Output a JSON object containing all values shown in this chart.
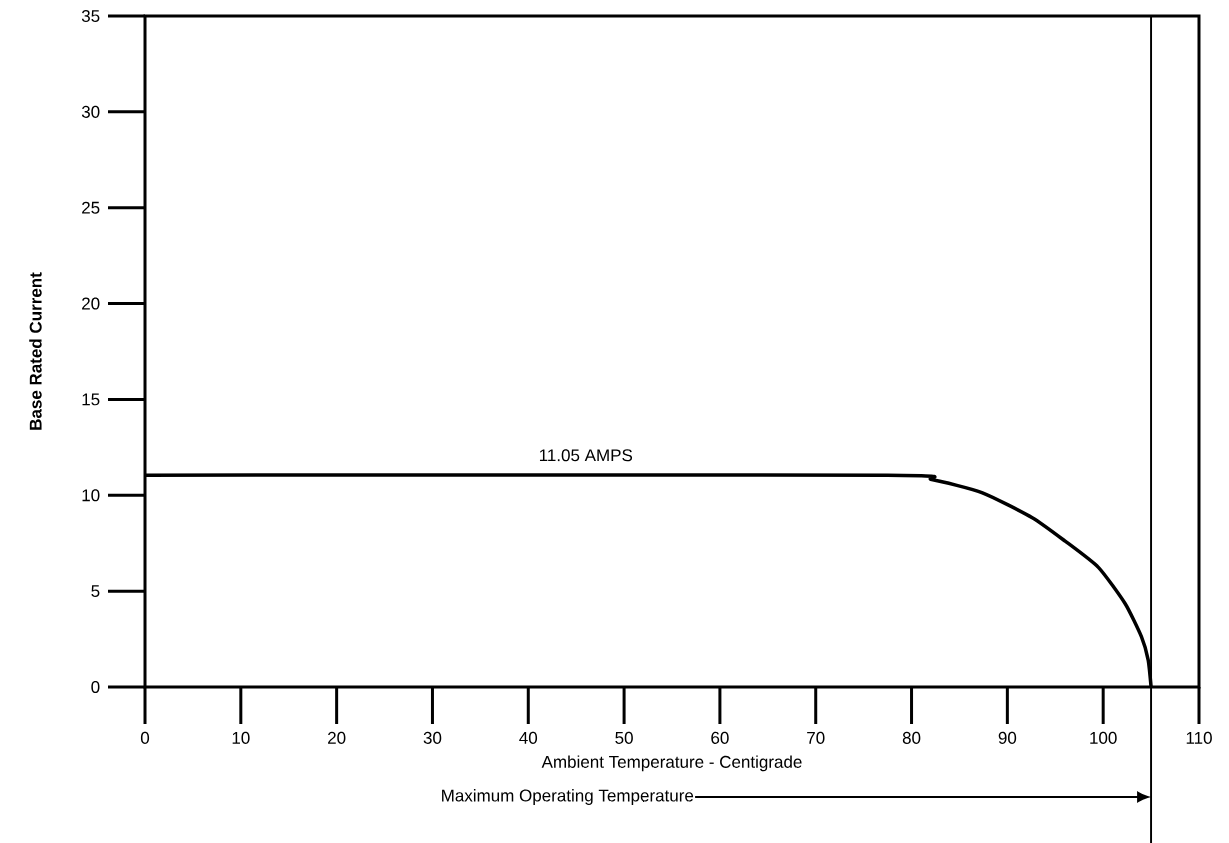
{
  "chart_data": {
    "type": "line",
    "xlabel": "Ambient Temperature - Centigrade",
    "ylabel": "Base Rated Current",
    "series": [
      {
        "color": "#000000",
        "x": [
          0,
          77.5,
          82.1,
          87.4,
          92.6,
          96.0,
          99.5,
          102.3,
          104.0,
          104.7,
          105
        ],
        "values": [
          11.05,
          11.05,
          10.82,
          10.13,
          8.83,
          7.62,
          6.24,
          4.34,
          2.61,
          1.4,
          0
        ]
      }
    ],
    "xlim": [
      0,
      110
    ],
    "xticks": [
      0,
      10,
      20,
      30,
      40,
      50,
      60,
      70,
      80,
      90,
      100,
      110
    ],
    "ylim": [
      0,
      35
    ],
    "yticks": [
      0,
      5,
      10,
      15,
      20,
      25,
      30,
      35
    ],
    "annotations": [
      {
        "text": "11.05 AMPS",
        "x": 46,
        "y": 11.05
      }
    ],
    "ref_lines": [
      {
        "axis": "x",
        "value": 105,
        "label": "Maximum Operating Temperature",
        "color": "#000000"
      }
    ],
    "grid": false,
    "marker": "none",
    "line_style": "solid"
  }
}
